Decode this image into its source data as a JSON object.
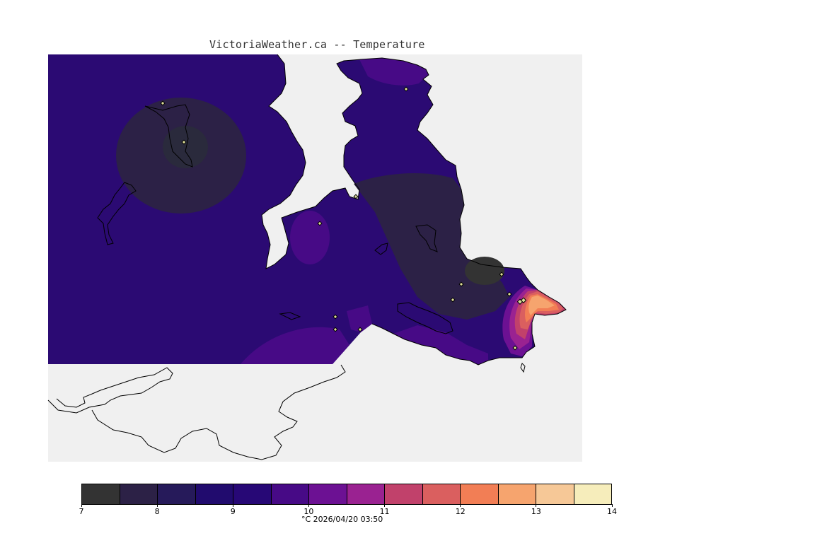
{
  "title": "VictoriaWeather.ca -- Temperature",
  "legend": {
    "unit_caption": "°C  2026/04/20 03:50",
    "levels": [
      7,
      7.5,
      8,
      8.5,
      9,
      9.5,
      10,
      10.5,
      11,
      11.5,
      12,
      12.5,
      13,
      13.5
    ],
    "colors": [
      "#333333",
      "#2c2146",
      "#261a5a",
      "#210b6e",
      "#270876",
      "#470a86",
      "#6c1193",
      "#9a2291",
      "#c1416b",
      "#da5f5f",
      "#f27e55",
      "#f6a46e",
      "#f6c897",
      "#f6edbb"
    ],
    "tick_labels": [
      "7",
      "8",
      "9",
      "10",
      "11",
      "12",
      "13",
      "14"
    ],
    "tick_values": [
      7,
      8,
      9,
      10,
      11,
      12,
      13,
      14
    ]
  },
  "map": {
    "background_color": "#f0f0f0",
    "land_color": "#ffffff",
    "base_color": "#2b0a73",
    "stations": [
      {
        "id": "s1"
      },
      {
        "id": "s2"
      },
      {
        "id": "s3"
      },
      {
        "id": "s4"
      },
      {
        "id": "s5"
      },
      {
        "id": "s6"
      },
      {
        "id": "s7"
      },
      {
        "id": "s8"
      },
      {
        "id": "s9"
      },
      {
        "id": "s10"
      },
      {
        "id": "s11"
      },
      {
        "id": "s12"
      },
      {
        "id": "s13"
      },
      {
        "id": "s14"
      }
    ]
  }
}
